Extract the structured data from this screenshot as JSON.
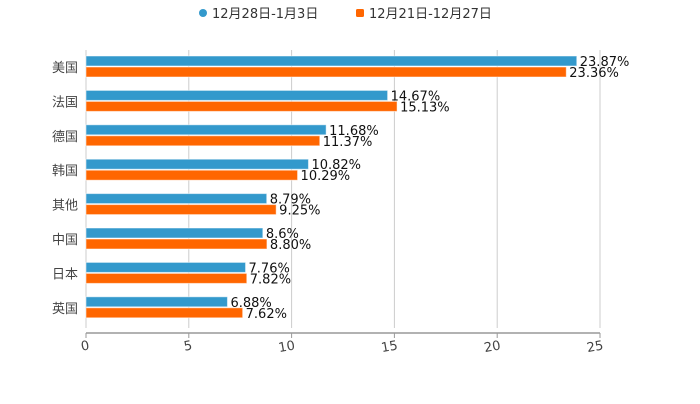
{
  "chart_data": {
    "type": "bar",
    "orientation": "horizontal",
    "categories": [
      "美国",
      "法国",
      "德国",
      "韩国",
      "其他",
      "中国",
      "日本",
      "英国"
    ],
    "series": [
      {
        "name": "12月28日-1月3日",
        "color": "#3399CC",
        "values": [
          23.87,
          14.67,
          11.68,
          10.82,
          8.79,
          8.6,
          7.76,
          6.88
        ],
        "labels": [
          "23.87%",
          "14.67%",
          "11.68%",
          "10.82%",
          "8.79%",
          "8.6%",
          "7.76%",
          "6.88%"
        ]
      },
      {
        "name": "12月21日-12月27日",
        "color": "#FF6600",
        "values": [
          23.36,
          15.13,
          11.37,
          10.29,
          9.25,
          8.8,
          7.82,
          7.62
        ],
        "labels": [
          "23.36%",
          "15.13%",
          "11.37%",
          "10.29%",
          "9.25%",
          "8.80%",
          "7.82%",
          "7.62%"
        ]
      }
    ],
    "xlim": [
      0,
      25
    ],
    "xticks": [
      "0",
      "5",
      "10",
      "15",
      "20",
      "25"
    ],
    "xtick_values": [
      0,
      5,
      10,
      15,
      20,
      25
    ],
    "grid": true,
    "legend_position": "top-center",
    "title": "",
    "xlabel": "",
    "ylabel": ""
  }
}
